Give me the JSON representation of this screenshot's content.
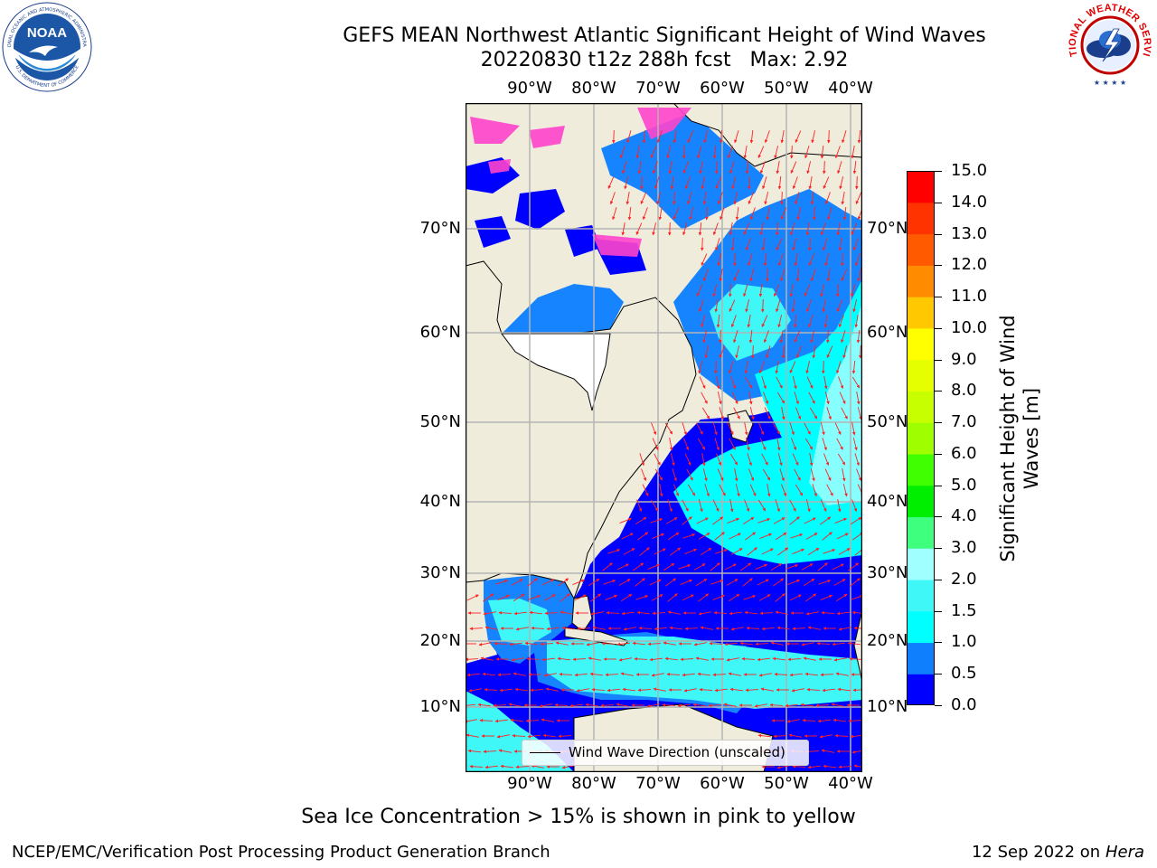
{
  "title": {
    "line1": "GEFS MEAN Northwest Atlantic Significant Height of Wind Waves",
    "line2": "20220830 t12z 288h fcst   Max: 2.92"
  },
  "logos": {
    "left": "NOAA",
    "left_ring_top": "NATIONAL OCEANIC AND ATMOSPHERIC ADMINISTRATION",
    "left_ring_bottom": "U.S. DEPARTMENT OF COMMERCE",
    "right_ring": "NATIONAL WEATHER SERVICE"
  },
  "map": {
    "lon_labels": [
      "90°W",
      "80°W",
      "70°W",
      "60°W",
      "50°W",
      "40°W"
    ],
    "lat_labels": [
      "70°N",
      "60°N",
      "50°N",
      "40°N",
      "30°N",
      "20°N",
      "10°N"
    ],
    "colors": {
      "land": "#efecdc",
      "ocean_calm": "#0000ff",
      "frame": "#000000",
      "grid": "#b4b4b4",
      "arrow": "#ff2020",
      "ice": "#ff44cc"
    }
  },
  "colorbar": {
    "label": "Significant Height of Wind Waves [m]",
    "ticks": [
      "0.0",
      "0.5",
      "1.0",
      "1.5",
      "2.0",
      "3.0",
      "4.0",
      "5.0",
      "6.0",
      "7.0",
      "8.0",
      "9.0",
      "10.0",
      "11.0",
      "12.0",
      "13.0",
      "14.0",
      "15.0"
    ],
    "colors": [
      "#0000ff",
      "#0f7ffe",
      "#00ffff",
      "#3ff7f7",
      "#a0ffff",
      "#3fff7f",
      "#00ef00",
      "#3fff00",
      "#9fff00",
      "#c8ff00",
      "#e6ff00",
      "#ffff00",
      "#ffc800",
      "#ff8c00",
      "#ff5a00",
      "#ff3300",
      "#ff0000"
    ]
  },
  "legend": {
    "label": "Wind Wave Direction (unscaled)"
  },
  "footer": {
    "note": "Sea Ice Concentration > 15% is shown in pink to yellow",
    "left": "NCEP/EMC/Verification Post Processing Product Generation Branch",
    "right_date": "12 Sep 2022 on",
    "right_host": "Hera"
  }
}
